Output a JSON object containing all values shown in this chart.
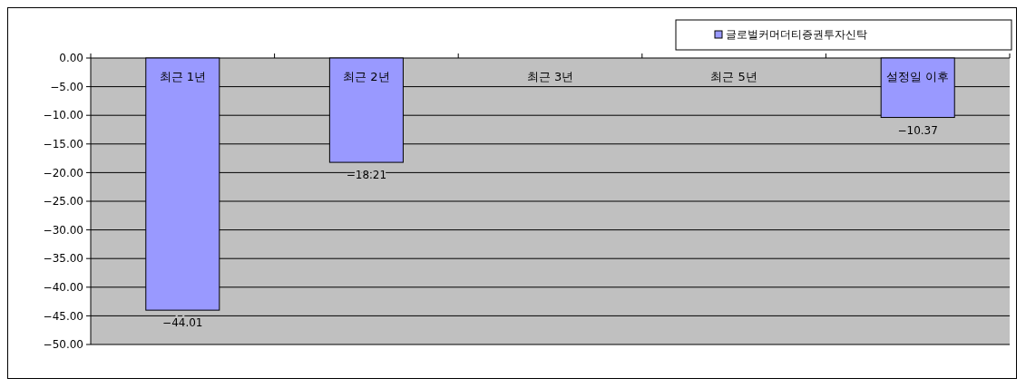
{
  "chart_data": {
    "type": "bar",
    "categories": [
      "최근 1년",
      "최근 2년",
      "최근 3년",
      "최근 5년",
      "설정일 이후"
    ],
    "series": [
      {
        "name": "글로벌커머더티증권투자신탁",
        "color": "#9999ff",
        "values": [
          -44.01,
          -18.21,
          null,
          null,
          -10.37
        ],
        "value_labels": [
          "−44.01",
          "−18.21",
          null,
          null,
          "−10.37"
        ]
      }
    ],
    "ylim": [
      -50,
      0
    ],
    "yticks": [
      {
        "value": 0,
        "label": "0.00"
      },
      {
        "value": -5,
        "label": "−5.00"
      },
      {
        "value": -10,
        "label": "−10.00"
      },
      {
        "value": -15,
        "label": "−15.00"
      },
      {
        "value": -20,
        "label": "−20.00"
      },
      {
        "value": -25,
        "label": "−25.00"
      },
      {
        "value": -30,
        "label": "−30.00"
      },
      {
        "value": -35,
        "label": "−35.00"
      },
      {
        "value": -40,
        "label": "−40.00"
      },
      {
        "value": -45,
        "label": "−45.00"
      },
      {
        "value": -50,
        "label": "−50.00"
      }
    ],
    "grid": "y",
    "legend": "top right"
  }
}
